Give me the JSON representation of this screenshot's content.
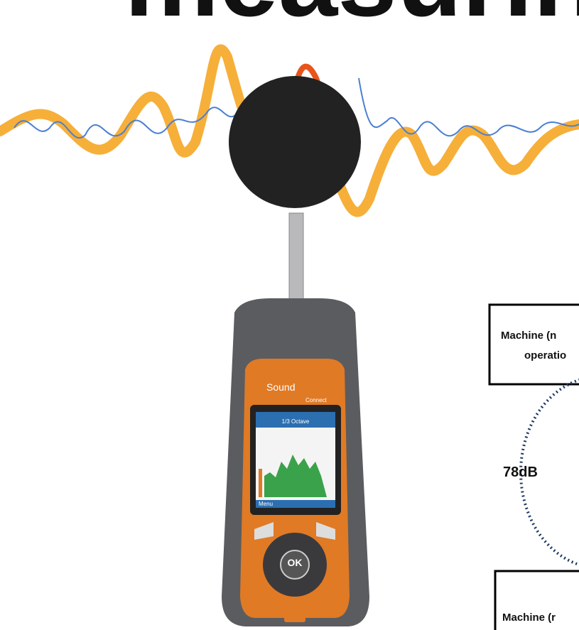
{
  "title": "measuring",
  "device": {
    "brand": "Sound",
    "model": "Connect",
    "screen_mode": "1/3 Octave",
    "menu": "Menu",
    "ok_button": "OK"
  },
  "boxes": [
    {
      "lines": [
        "Machine (n",
        "operatio"
      ]
    },
    {
      "lines": [
        "Machine (r"
      ]
    }
  ],
  "level": "78dB"
}
